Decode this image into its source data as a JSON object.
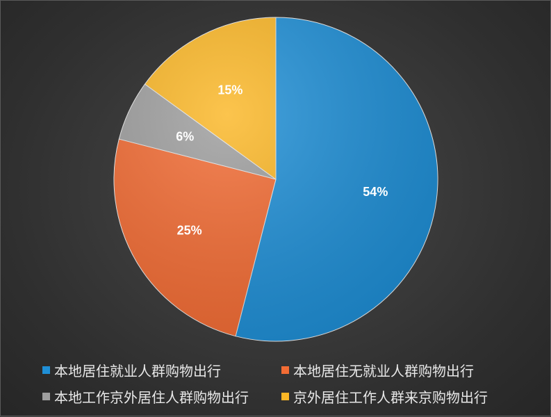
{
  "chart_data": {
    "type": "pie",
    "title": "",
    "slices": [
      {
        "name": "本地居住就业人群购物出行",
        "value": 54,
        "label": "54%",
        "color": "#1f8fd6"
      },
      {
        "name": "本地居住无就业人群购物出行",
        "value": 25,
        "label": "25%",
        "color": "#f36c34"
      },
      {
        "name": "本地工作京外居住人群购物出行",
        "value": 6,
        "label": "6%",
        "color": "#9e9e9e"
      },
      {
        "name": "京外居住工作人群来京购物出行",
        "value": 15,
        "label": "15%",
        "color": "#fbb726"
      }
    ],
    "legend_position": "bottom",
    "start_angle": "12 o'clock",
    "direction": "clockwise"
  }
}
